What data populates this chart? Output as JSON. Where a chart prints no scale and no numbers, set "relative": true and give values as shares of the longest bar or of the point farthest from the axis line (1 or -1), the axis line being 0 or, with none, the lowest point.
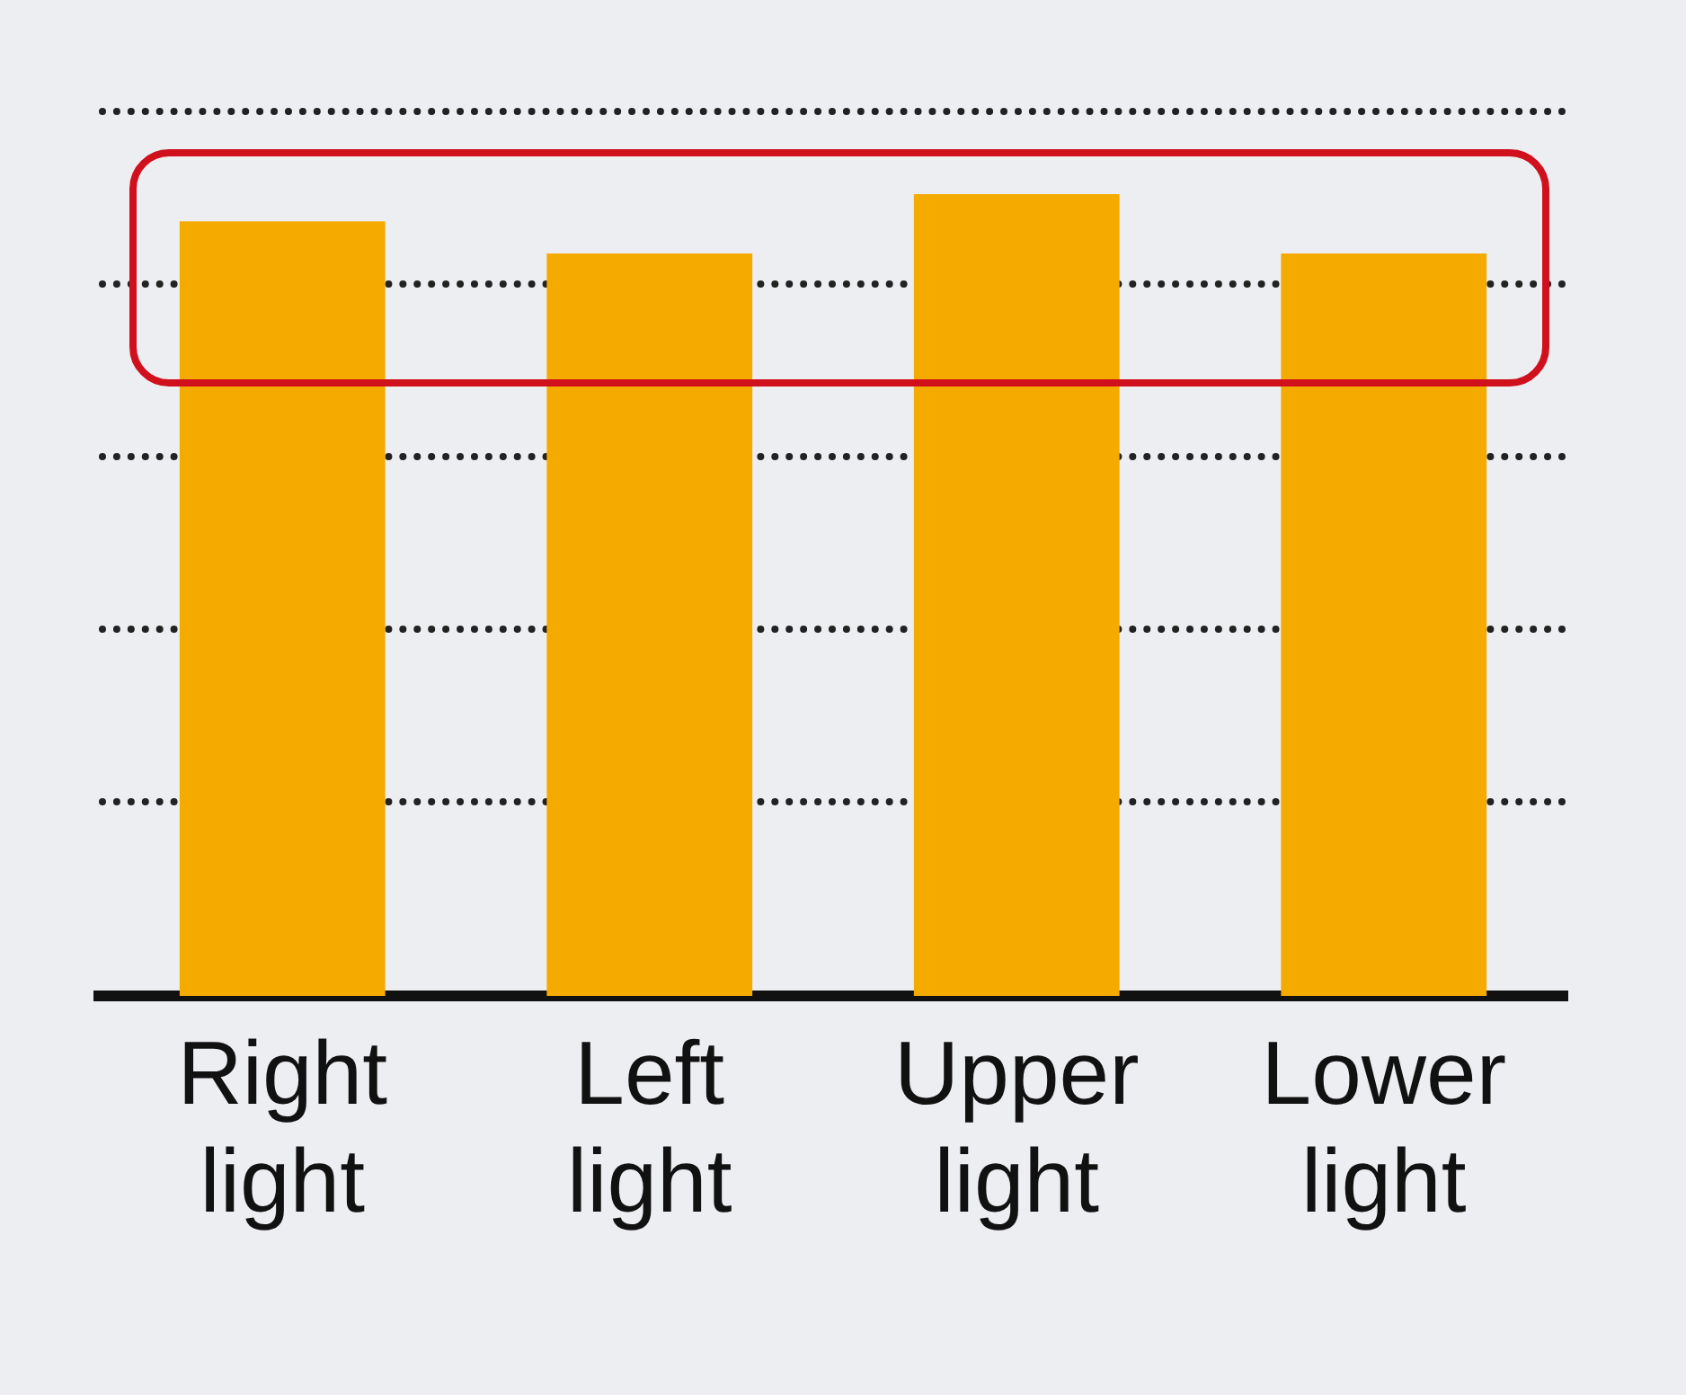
{
  "chart_data": {
    "type": "bar",
    "relative": true,
    "categories": [
      "Right light",
      "Left light",
      "Upper light",
      "Lower light"
    ],
    "values": [
      0.966,
      0.926,
      1,
      0.926
    ],
    "color": "#f5aa00",
    "legend": false
  }
}
